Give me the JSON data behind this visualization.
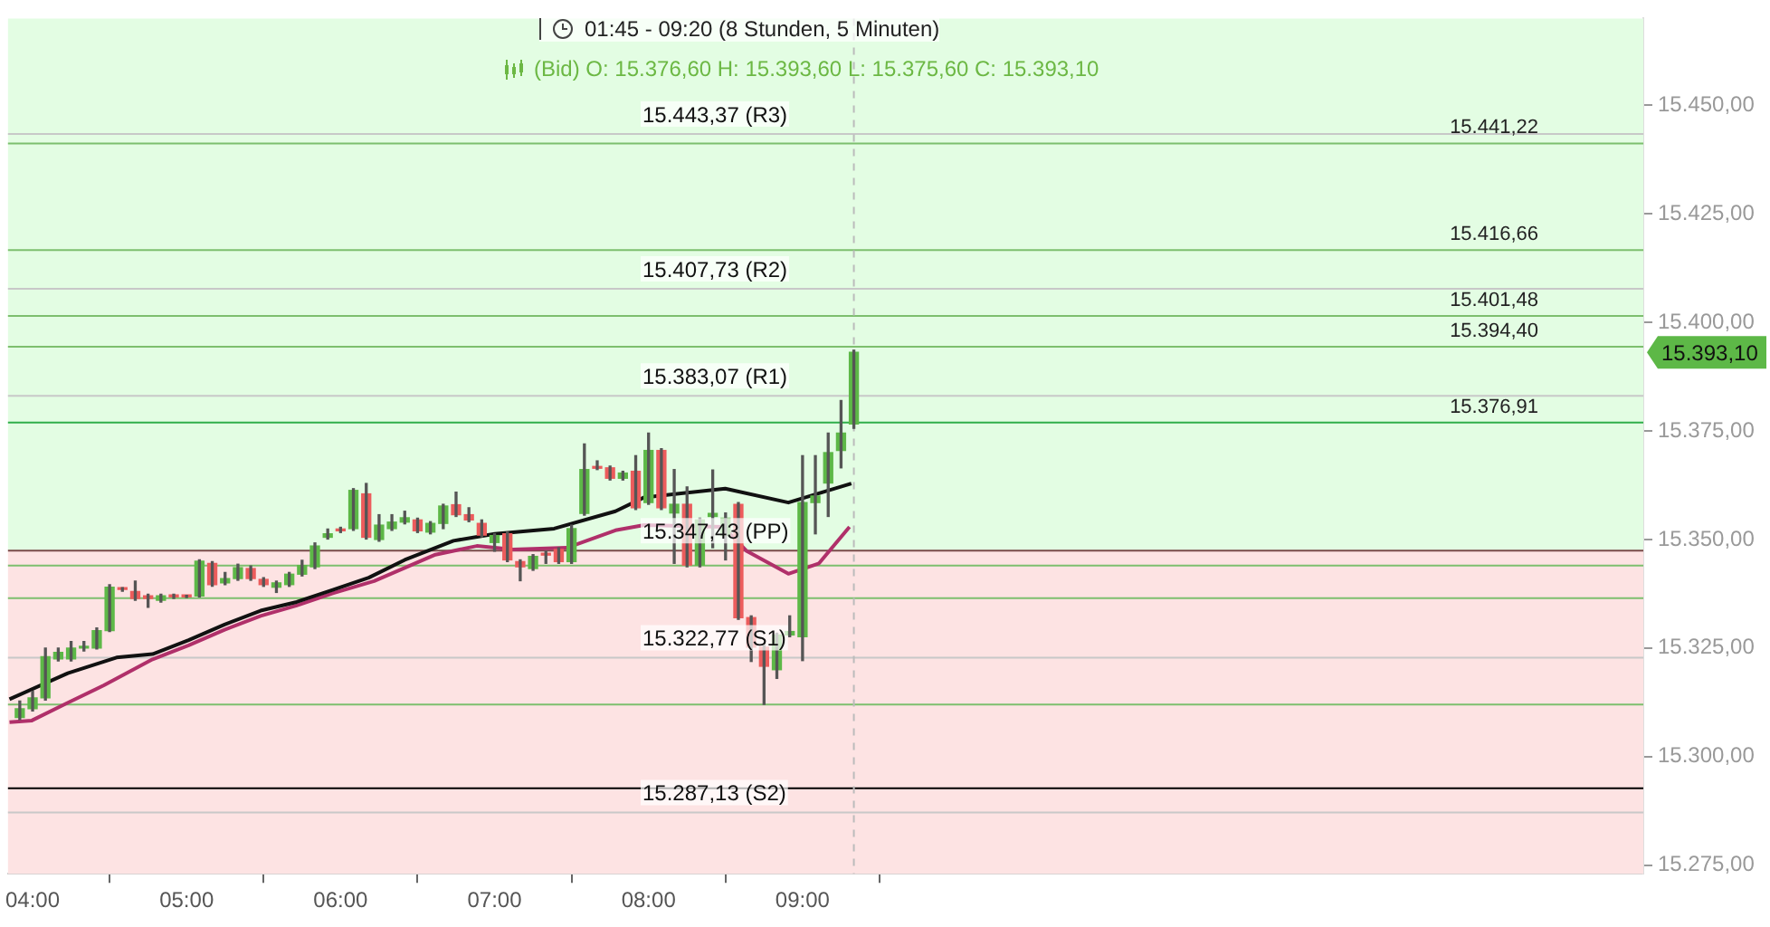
{
  "chart_data": {
    "type": "candlestick",
    "title": "01:45 - 09:20  (8 Stunden, 5 Minuten)",
    "subtitle": "(Bid)  O: 15.376,60  H: 15.393,60  L: 15.375,60  C: 15.393,10",
    "x": [
      3.9167,
      4,
      4.0833,
      4.1667,
      4.25,
      4.3333,
      4.4167,
      4.5,
      4.5833,
      4.6667,
      4.75,
      4.8333,
      4.9167,
      5,
      5.0833,
      5.1667,
      5.25,
      5.3333,
      5.4167,
      5.5,
      5.5833,
      5.6667,
      5.75,
      5.8333,
      5.9167,
      6,
      6.0833,
      6.1667,
      6.25,
      6.3333,
      6.4167,
      6.5,
      6.5833,
      6.6667,
      6.75,
      6.8333,
      6.9167,
      7,
      7.0833,
      7.1667,
      7.25,
      7.3333,
      7.4167,
      7.5,
      7.5833,
      7.6667,
      7.75,
      7.8333,
      7.9167,
      8,
      8.0833,
      8.1667,
      8.25,
      8.3333,
      8.4167,
      8.5,
      8.5833,
      8.6667,
      8.75,
      8.8333,
      8.9167,
      9,
      9.0833,
      9.1667,
      9.25,
      9.3333
    ],
    "ohlc": [
      [
        15309,
        15312.8,
        15308.5,
        15311
      ],
      [
        15311,
        15315,
        15310.5,
        15313.5
      ],
      [
        15313.5,
        15325,
        15313,
        15323
      ],
      [
        15322.5,
        15325,
        15322,
        15324
      ],
      [
        15322.5,
        15326.5,
        15322,
        15325
      ],
      [
        15325,
        15326.5,
        15324.3,
        15325.3
      ],
      [
        15325,
        15329.6,
        15324.8,
        15329
      ],
      [
        15329,
        15339.6,
        15328.8,
        15339
      ],
      [
        15338.7,
        15338.9,
        15338.1,
        15338.5
      ],
      [
        15338,
        15340.4,
        15336,
        15336.4
      ],
      [
        15337,
        15337.4,
        15334.4,
        15336.4
      ],
      [
        15336,
        15337.4,
        15335.6,
        15337
      ],
      [
        15337,
        15337.4,
        15336.4,
        15336.8
      ],
      [
        15336.9,
        15337.1,
        15336.6,
        15336.8
      ],
      [
        15337,
        15345.3,
        15336.8,
        15345
      ],
      [
        15344.5,
        15344.9,
        15339.2,
        15339.6
      ],
      [
        15340,
        15342.4,
        15339.6,
        15341
      ],
      [
        15341,
        15344.3,
        15340.6,
        15343.5
      ],
      [
        15343.3,
        15343.9,
        15340.6,
        15341
      ],
      [
        15340.8,
        15341.2,
        15339.2,
        15339.6
      ],
      [
        15339,
        15340.4,
        15337.8,
        15340
      ],
      [
        15339.6,
        15342.4,
        15339.2,
        15342
      ],
      [
        15342,
        15345.2,
        15341.6,
        15344
      ],
      [
        15343.7,
        15349.2,
        15343.3,
        15348.5
      ],
      [
        15350.5,
        15352.4,
        15350.1,
        15351.3
      ],
      [
        15352.2,
        15352.8,
        15351.6,
        15352
      ],
      [
        15352.5,
        15361.7,
        15352.1,
        15361.3
      ],
      [
        15360.5,
        15362.9,
        15350.1,
        15350.5
      ],
      [
        15350,
        15355.7,
        15349.6,
        15353.3
      ],
      [
        15352.5,
        15355.7,
        15352.1,
        15354
      ],
      [
        15354,
        15356.5,
        15353.6,
        15355
      ],
      [
        15354.5,
        15354.9,
        15351.6,
        15352
      ],
      [
        15351.7,
        15354.1,
        15351.3,
        15353.7
      ],
      [
        15353.7,
        15358.1,
        15352.5,
        15357.7
      ],
      [
        15358,
        15360.9,
        15355.3,
        15355.7
      ],
      [
        15355.7,
        15357.3,
        15354.1,
        15354.5
      ],
      [
        15353.7,
        15354.5,
        15350.6,
        15351
      ],
      [
        15349.3,
        15351.3,
        15347.3,
        15350.9
      ],
      [
        15351.3,
        15351.7,
        15344.9,
        15345.3
      ],
      [
        15344.9,
        15345.3,
        15340.5,
        15343.7
      ],
      [
        15343.3,
        15346.5,
        15342.9,
        15346.1
      ],
      [
        15346.6,
        15347.3,
        15344.5,
        15346.4
      ],
      [
        15347.7,
        15348.1,
        15344.5,
        15344.9
      ],
      [
        15344.9,
        15353.3,
        15344.5,
        15352.5
      ],
      [
        15356,
        15372,
        15355.6,
        15366.1
      ],
      [
        15366.7,
        15368.1,
        15366.1,
        15366.4
      ],
      [
        15366.5,
        15366.9,
        15363.7,
        15364.1
      ],
      [
        15364.1,
        15365.7,
        15363.7,
        15365.3
      ],
      [
        15365.7,
        15369.3,
        15356.9,
        15357.3
      ],
      [
        15358.5,
        15374.5,
        15358.1,
        15370.5
      ],
      [
        15370.5,
        15370.9,
        15356.9,
        15357.3
      ],
      [
        15356.1,
        15366.1,
        15344.5,
        15358.1
      ],
      [
        15358.1,
        15362.1,
        15343.7,
        15344.1
      ],
      [
        15344.1,
        15354.9,
        15343.7,
        15354.5
      ],
      [
        15355.3,
        15366,
        15348.1,
        15356
      ],
      [
        15350.9,
        15356.1,
        15345.3,
        15354.9
      ],
      [
        15358.1,
        15358.5,
        15331.6,
        15332
      ],
      [
        15332,
        15332.4,
        15321.9,
        15325.2
      ],
      [
        15325.2,
        15325.6,
        15312,
        15320.8
      ],
      [
        15320,
        15328.4,
        15318,
        15328
      ],
      [
        15328,
        15332.4,
        15327.6,
        15328.8
      ],
      [
        15327.6,
        15369.3,
        15322.1,
        15358.5
      ],
      [
        15358.5,
        15369.3,
        15351.3,
        15360
      ],
      [
        15363,
        15374.5,
        15355.3,
        15370
      ],
      [
        15370.5,
        15382,
        15366.5,
        15374.5
      ],
      [
        15376.6,
        15393.6,
        15375.6,
        15393.1
      ]
    ],
    "colors": [
      "#5db847",
      "#5db847",
      "#5db847",
      "#5db847",
      "#5db847",
      "#5db847",
      "#5db847",
      "#5db847",
      "#ec5c5c",
      "#ec5c5c",
      "#ec5c5c",
      "#5db847",
      "#ec5c5c",
      "#ec5c5c",
      "#5db847",
      "#ec5c5c",
      "#5db847",
      "#5db847",
      "#ec5c5c",
      "#ec5c5c",
      "#5db847",
      "#5db847",
      "#5db847",
      "#5db847",
      "#5db847",
      "#ec5c5c",
      "#5db847",
      "#ec5c5c",
      "#5db847",
      "#5db847",
      "#5db847",
      "#ec5c5c",
      "#5db847",
      "#5db847",
      "#ec5c5c",
      "#ec5c5c",
      "#ec5c5c",
      "#5db847",
      "#ec5c5c",
      "#ec5c5c",
      "#5db847",
      "#ec5c5c",
      "#ec5c5c",
      "#5db847",
      "#5db847",
      "#ec5c5c",
      "#ec5c5c",
      "#5db847",
      "#ec5c5c",
      "#5db847",
      "#ec5c5c",
      "#5db847",
      "#ec5c5c",
      "#5db847",
      "#5db847",
      "#5db847",
      "#ec5c5c",
      "#ec5c5c",
      "#ec5c5c",
      "#5db847",
      "#5db847",
      "#5db847",
      "#5db847",
      "#5db847",
      "#5db847",
      "#5db847"
    ],
    "series": [
      {
        "type": "line",
        "color": "#111111",
        "x": [
          3.85,
          4.229,
          4.545,
          4.779,
          5.013,
          5.247,
          5.481,
          5.715,
          5.949,
          6.183,
          6.417,
          6.733,
          7.001,
          7.387,
          7.785,
          7.972,
          8.498,
          8.908,
          9.317
        ],
        "values": [
          15313.2,
          15319.2,
          15322.8,
          15323.6,
          15326.8,
          15330.4,
          15333.6,
          15335.6,
          15338.4,
          15341.2,
          15345.3,
          15349.7,
          15351.3,
          15352.5,
          15356.5,
          15359.7,
          15361.7,
          15358.5,
          15362.9
        ]
      },
      {
        "type": "line",
        "color": "#b0306a",
        "x": [
          3.85,
          3.995,
          4.229,
          4.463,
          4.779,
          5.013,
          5.247,
          5.481,
          5.715,
          5.949,
          6.218,
          6.616,
          6.885,
          7.119,
          7.47,
          7.785,
          7.972,
          8.486,
          8.638,
          8.908,
          9.107,
          9.305
        ],
        "values": [
          15307.9,
          15308.3,
          15312.4,
          15316.4,
          15322.4,
          15325.6,
          15329.2,
          15332.4,
          15334.8,
          15337.6,
          15340.4,
          15346.5,
          15348.5,
          15347.7,
          15348.1,
          15352.1,
          15353.3,
          15352.9,
          15347.3,
          15342.1,
          15344.5,
          15352.9
        ]
      }
    ],
    "xlim": [
      3.84,
      14.46
    ],
    "ylim": [
      15273,
      15470
    ],
    "xticks": [
      {
        "value": 4,
        "label": "04:00"
      },
      {
        "value": 5,
        "label": "05:00"
      },
      {
        "value": 6,
        "label": "06:00"
      },
      {
        "value": 7,
        "label": "07:00"
      },
      {
        "value": 8,
        "label": "08:00"
      },
      {
        "value": 9,
        "label": "09:00"
      }
    ],
    "yticks": [
      {
        "value": 15275,
        "label": "15.275,00"
      },
      {
        "value": 15300,
        "label": "15.300,00"
      },
      {
        "value": 15325,
        "label": "15.325,00"
      },
      {
        "value": 15350,
        "label": "15.350,00"
      },
      {
        "value": 15375,
        "label": "15.375,00"
      },
      {
        "value": 15400,
        "label": "15.400,00"
      },
      {
        "value": 15425,
        "label": "15.425,00"
      },
      {
        "value": 15450,
        "label": "15.450,00"
      }
    ],
    "bands": [
      {
        "axis": "y",
        "from": 15347.43,
        "to": 15470,
        "color": "#e3fde3"
      },
      {
        "axis": "y",
        "from": 15273,
        "to": 15347.43,
        "color": "#fde3e3"
      }
    ],
    "ref_lines": [
      {
        "axis": "y",
        "value": 15443.37,
        "color": "#c8c8c8"
      },
      {
        "axis": "y",
        "value": 15407.73,
        "color": "#c8c8c8"
      },
      {
        "axis": "y",
        "value": 15383.07,
        "color": "#c8c8c8"
      },
      {
        "axis": "y",
        "value": 15347.43,
        "color": "#7a4a4a"
      },
      {
        "axis": "y",
        "value": 15322.77,
        "color": "#c8c8c8"
      },
      {
        "axis": "y",
        "value": 15287.13,
        "color": "#c8c8c8"
      },
      {
        "axis": "y",
        "value": 15441.22,
        "label": "15.441,22",
        "color": "#7dbf6e"
      },
      {
        "axis": "y",
        "value": 15416.66,
        "label": "15.416,66",
        "color": "#7dbf6e"
      },
      {
        "axis": "y",
        "value": 15401.48,
        "label": "15.401,48",
        "color": "#7dbf6e"
      },
      {
        "axis": "y",
        "value": 15394.4,
        "label": "15.394,40",
        "color": "#7dbf6e"
      },
      {
        "axis": "y",
        "value": 15376.91,
        "label": "15.376,91",
        "color": "#2fae4a"
      },
      {
        "axis": "y",
        "value": 15344,
        "color": "#7dbf6e"
      },
      {
        "axis": "y",
        "value": 15336.5,
        "color": "#7dbf6e"
      },
      {
        "axis": "y",
        "value": 15312,
        "color": "#7dbf6e"
      },
      {
        "axis": "y",
        "value": 15292.7,
        "color": "#000000"
      },
      {
        "axis": "x",
        "value": 9.3333,
        "color": "#bbbbbb",
        "line_style": "dashed"
      }
    ],
    "annotations": [
      {
        "text": "15.443,37 (R3)",
        "y": 15443.37
      },
      {
        "text": "15.407,73 (R2)",
        "y": 15407.73
      },
      {
        "text": "15.383,07 (R1)",
        "y": 15383.07
      },
      {
        "text": "15.347,43 (PP)",
        "y": 15347.43
      },
      {
        "text": "15.322,77 (S1)",
        "y": 15322.77
      },
      {
        "text": "15.287,13 (S2)",
        "y": 15287.13
      },
      "15.393,10"
    ]
  }
}
